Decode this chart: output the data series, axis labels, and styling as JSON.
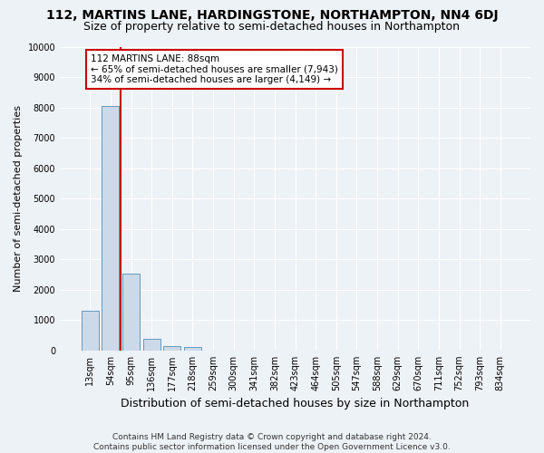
{
  "title": "112, MARTINS LANE, HARDINGSTONE, NORTHAMPTON, NN4 6DJ",
  "subtitle": "Size of property relative to semi-detached houses in Northampton",
  "xlabel": "Distribution of semi-detached houses by size in Northampton",
  "ylabel": "Number of semi-detached properties",
  "categories": [
    "13sqm",
    "54sqm",
    "95sqm",
    "136sqm",
    "177sqm",
    "218sqm",
    "259sqm",
    "300sqm",
    "341sqm",
    "382sqm",
    "423sqm",
    "464sqm",
    "505sqm",
    "547sqm",
    "588sqm",
    "629sqm",
    "670sqm",
    "711sqm",
    "752sqm",
    "793sqm",
    "834sqm"
  ],
  "values": [
    1320,
    8050,
    2520,
    370,
    140,
    100,
    0,
    0,
    0,
    0,
    0,
    0,
    0,
    0,
    0,
    0,
    0,
    0,
    0,
    0,
    0
  ],
  "bar_color": "#ccd9e8",
  "bar_edge_color": "#6699bb",
  "annotation_text": "112 MARTINS LANE: 88sqm\n← 65% of semi-detached houses are smaller (7,943)\n34% of semi-detached houses are larger (4,149) →",
  "annotation_box_color": "#ffffff",
  "annotation_box_edge": "#cc0000",
  "red_line_x": 1.5,
  "ylim": [
    0,
    10000
  ],
  "yticks": [
    0,
    1000,
    2000,
    3000,
    4000,
    5000,
    6000,
    7000,
    8000,
    9000,
    10000
  ],
  "footer": "Contains HM Land Registry data © Crown copyright and database right 2024.\nContains public sector information licensed under the Open Government Licence v3.0.",
  "bg_color": "#edf2f7",
  "grid_color": "#ffffff",
  "title_fontsize": 10,
  "subtitle_fontsize": 9,
  "ylabel_fontsize": 8,
  "xlabel_fontsize": 9,
  "tick_fontsize": 7,
  "annotation_fontsize": 7.5,
  "footer_fontsize": 6.5
}
